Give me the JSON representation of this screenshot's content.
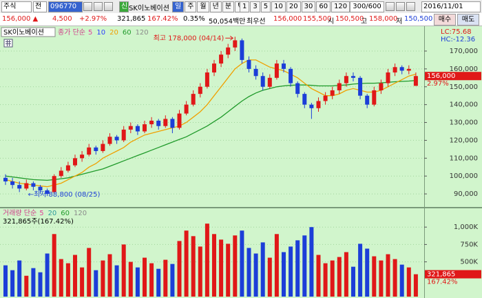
{
  "toolbar": {
    "market": "주식",
    "prefix": "전",
    "code": "096770",
    "credit": "신",
    "name": "SK이노베이션",
    "periods": [
      "일",
      "주",
      "월",
      "년",
      "분",
      "틱"
    ],
    "minutes": [
      "1",
      "3",
      "5",
      "10",
      "20",
      "30",
      "60",
      "120"
    ],
    "count": "300/600",
    "date": "2016/11/01"
  },
  "quote": {
    "price": "156,000 ▲",
    "change": "4,500",
    "change_pct": "+2.97%",
    "volume": "321,865",
    "volume_pct": "167.42%",
    "turnover": "0.35%",
    "amount": "50,054백만",
    "best_label": "최우선",
    "ask": "156,000",
    "bid": "155,500",
    "open_label": "시",
    "open": "150,500",
    "high_label": "고",
    "high": "158,000",
    "low_label": "저",
    "low": "150,500",
    "buy": "매수",
    "sell": "매도"
  },
  "chart_data": {
    "type": "candlestick",
    "title": "SK이노베이션",
    "legend_label": "종가 단순",
    "ma_legend": [
      {
        "label": "5",
        "color": "#e0409a"
      },
      {
        "label": "10",
        "color": "#2a3cff"
      },
      {
        "label": "20",
        "color": "#f0a000"
      },
      {
        "label": "60",
        "color": "#1f9a2a"
      },
      {
        "label": "120",
        "color": "#8a8a8a"
      }
    ],
    "lc": "LC:75.68",
    "hc": "HC:-12.36",
    "high_note": "최고 178,000 (04/14)",
    "low_note": "←최저 88,800 (08/25)",
    "up_color": "#e01818",
    "down_color": "#1c3ed8",
    "grid": true,
    "candles": [
      [
        99000,
        101000,
        95000,
        97000
      ],
      [
        97000,
        99000,
        93000,
        95000
      ],
      [
        95000,
        97000,
        91000,
        93000
      ],
      [
        93000,
        98000,
        92000,
        96000
      ],
      [
        96000,
        97000,
        92000,
        94000
      ],
      [
        94000,
        95000,
        90000,
        92000
      ],
      [
        92000,
        93000,
        88800,
        90000
      ],
      [
        91000,
        101000,
        90000,
        100000
      ],
      [
        100000,
        105000,
        99000,
        103000
      ],
      [
        103000,
        108000,
        102000,
        106000
      ],
      [
        106000,
        112000,
        105000,
        110000
      ],
      [
        110000,
        114000,
        108000,
        112000
      ],
      [
        112000,
        118000,
        111000,
        116000
      ],
      [
        116000,
        117000,
        112000,
        114000
      ],
      [
        114000,
        120000,
        113000,
        118000
      ],
      [
        118000,
        124000,
        117000,
        122000
      ],
      [
        122000,
        123000,
        118000,
        120000
      ],
      [
        120000,
        128000,
        119000,
        126000
      ],
      [
        126000,
        130000,
        124000,
        128000
      ],
      [
        128000,
        129000,
        123000,
        125000
      ],
      [
        125000,
        131000,
        124000,
        129000
      ],
      [
        129000,
        133000,
        127000,
        131000
      ],
      [
        131000,
        132000,
        126000,
        128000
      ],
      [
        128000,
        134000,
        127000,
        132000
      ],
      [
        132000,
        133000,
        124000,
        127000
      ],
      [
        127000,
        137000,
        126000,
        135000
      ],
      [
        135000,
        142000,
        134000,
        140000
      ],
      [
        140000,
        148000,
        139000,
        146000
      ],
      [
        146000,
        152000,
        144000,
        150000
      ],
      [
        150000,
        160000,
        149000,
        158000
      ],
      [
        158000,
        165000,
        156000,
        163000
      ],
      [
        163000,
        170000,
        161000,
        168000
      ],
      [
        168000,
        174000,
        166000,
        172000
      ],
      [
        172000,
        178000,
        170000,
        176000
      ],
      [
        176000,
        177000,
        163000,
        165000
      ],
      [
        165000,
        167000,
        158000,
        160000
      ],
      [
        160000,
        162000,
        154000,
        156000
      ],
      [
        156000,
        158000,
        148000,
        150000
      ],
      [
        150000,
        157000,
        149000,
        155000
      ],
      [
        155000,
        165000,
        154000,
        163000
      ],
      [
        163000,
        165000,
        158000,
        160000
      ],
      [
        160000,
        161000,
        150000,
        152000
      ],
      [
        152000,
        153000,
        144000,
        146000
      ],
      [
        146000,
        147000,
        138000,
        140000
      ],
      [
        140000,
        141000,
        132000,
        138000
      ],
      [
        138000,
        144000,
        136000,
        142000
      ],
      [
        142000,
        147000,
        140000,
        145000
      ],
      [
        145000,
        150000,
        143000,
        148000
      ],
      [
        148000,
        154000,
        146000,
        152000
      ],
      [
        152000,
        158000,
        150000,
        156000
      ],
      [
        156000,
        158000,
        153000,
        155000
      ],
      [
        155000,
        156000,
        143000,
        145000
      ],
      [
        145000,
        146000,
        138000,
        140000
      ],
      [
        140000,
        150000,
        139000,
        148000
      ],
      [
        148000,
        154000,
        146000,
        152000
      ],
      [
        152000,
        160000,
        150000,
        158000
      ],
      [
        158000,
        163000,
        156000,
        161000
      ],
      [
        161000,
        162000,
        157000,
        159000
      ],
      [
        159000,
        162000,
        157000,
        160000
      ],
      [
        150500,
        158000,
        150500,
        156000
      ]
    ],
    "ma20_values": [
      98000,
      97000,
      96000,
      95500,
      95000,
      94500,
      94000,
      95000,
      96000,
      98000,
      100000,
      102000,
      105000,
      107000,
      110000,
      112000,
      114000,
      116000,
      119000,
      121000,
      123000,
      124000,
      125000,
      126000,
      127000,
      128000,
      130000,
      133000,
      136000,
      140000,
      145000,
      150000,
      155000,
      160000,
      163000,
      165000,
      165000,
      163000,
      161000,
      160000,
      159000,
      157000,
      155000,
      152000,
      149000,
      147000,
      145000,
      145000,
      146000,
      148000,
      149000,
      148000,
      147000,
      147000,
      148000,
      150000,
      152000,
      154000,
      156000,
      157000
    ],
    "ma60_values": [
      100000,
      99500,
      99000,
      98500,
      98000,
      97800,
      97600,
      98000,
      98500,
      99000,
      100000,
      101000,
      102000,
      103000,
      104000,
      105500,
      107000,
      108500,
      110000,
      111500,
      113000,
      114500,
      116000,
      117500,
      119000,
      120500,
      122000,
      124000,
      126000,
      128000,
      130500,
      133000,
      136000,
      139000,
      142000,
      144500,
      146500,
      148000,
      149000,
      150000,
      150500,
      150800,
      151000,
      151000,
      150800,
      150500,
      150500,
      150500,
      150800,
      151000,
      151500,
      151800,
      152000,
      152000,
      152200,
      152500,
      152800,
      153000,
      153200,
      153500
    ],
    "ylim": [
      82700,
      183900
    ],
    "yticks": [
      {
        "value": 170000,
        "label": "170,000"
      },
      {
        "value": 160000,
        "label": "160,000"
      },
      {
        "value": 150000,
        "label": "150,000"
      },
      {
        "value": 140000,
        "label": "140,000"
      },
      {
        "value": 130000,
        "label": "130,000"
      },
      {
        "value": 120000,
        "label": "120,000"
      },
      {
        "value": 110000,
        "label": "110,000"
      },
      {
        "value": 100000,
        "label": "100,000"
      },
      {
        "value": 90000,
        "label": "90,000"
      }
    ],
    "last_price_label": "156,000",
    "last_change_label": "2.97%",
    "volume": {
      "title": "거래량 단순",
      "ma_legend": [
        {
          "label": "5",
          "color": "#e0409a"
        },
        {
          "label": "20",
          "color": "#2a9a9a"
        },
        {
          "label": "60",
          "color": "#1f9a2a"
        },
        {
          "label": "120",
          "color": "#8a8a8a"
        }
      ],
      "summary": "321,865주(167.42%)",
      "values": [
        450000,
        380000,
        520000,
        300000,
        410000,
        350000,
        620000,
        900000,
        540000,
        480000,
        600000,
        420000,
        700000,
        380000,
        520000,
        610000,
        450000,
        750000,
        500000,
        420000,
        560000,
        480000,
        400000,
        530000,
        470000,
        800000,
        950000,
        870000,
        720000,
        1050000,
        900000,
        820000,
        760000,
        880000,
        950000,
        700000,
        620000,
        780000,
        560000,
        900000,
        640000,
        720000,
        810000,
        880000,
        1000000,
        600000,
        480000,
        520000,
        570000,
        640000,
        430000,
        760000,
        690000,
        580000,
        520000,
        610000,
        540000,
        460000,
        420000,
        321865
      ],
      "ylim": [
        0,
        1270000
      ],
      "yticks": [
        {
          "value": 1000000,
          "label": "1,000K"
        },
        {
          "value": 750000,
          "label": "750K"
        },
        {
          "value": 500000,
          "label": "500K"
        }
      ],
      "last_label": "321,865",
      "last_pct_label": "167.42%"
    }
  }
}
